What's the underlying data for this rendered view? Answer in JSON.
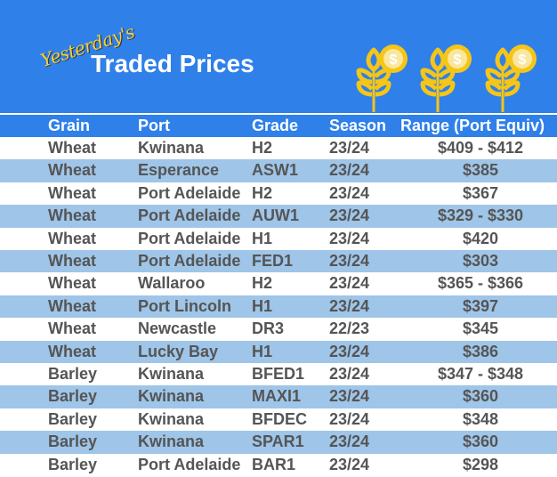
{
  "banner": {
    "script_text": "Yesterday's",
    "title": "Traded Prices",
    "icon": "wheat-coin-icon",
    "bg_color": "#2f80e9",
    "accent_color": "#f5c518"
  },
  "table": {
    "headers": [
      "Grain",
      "Port",
      "Grade",
      "Season",
      "Range (Port Equiv)"
    ],
    "rows": [
      [
        "Wheat",
        "Kwinana",
        "H2",
        "23/24",
        "$409 - $412"
      ],
      [
        "Wheat",
        "Esperance",
        "ASW1",
        "23/24",
        "$385"
      ],
      [
        "Wheat",
        "Port Adelaide",
        "H2",
        "23/24",
        "$367"
      ],
      [
        "Wheat",
        "Port Adelaide",
        "AUW1",
        "23/24",
        "$329 - $330"
      ],
      [
        "Wheat",
        "Port Adelaide",
        "H1",
        "23/24",
        "$420"
      ],
      [
        "Wheat",
        "Port Adelaide",
        "FED1",
        "23/24",
        "$303"
      ],
      [
        "Wheat",
        "Wallaroo",
        "H2",
        "23/24",
        "$365 - $366"
      ],
      [
        "Wheat",
        "Port Lincoln",
        "H1",
        "23/24",
        "$397"
      ],
      [
        "Wheat",
        "Newcastle",
        "DR3",
        "22/23",
        "$345"
      ],
      [
        "Wheat",
        "Lucky Bay",
        "H1",
        "23/24",
        "$386"
      ],
      [
        "Barley",
        "Kwinana",
        "BFED1",
        "23/24",
        "$347 - $348"
      ],
      [
        "Barley",
        "Kwinana",
        "MAXI1",
        "23/24",
        "$360"
      ],
      [
        "Barley",
        "Kwinana",
        "BFDEC",
        "23/24",
        "$348"
      ],
      [
        "Barley",
        "Kwinana",
        "SPAR1",
        "23/24",
        "$360"
      ],
      [
        "Barley",
        "Port Adelaide",
        "BAR1",
        "23/24",
        "$298"
      ]
    ]
  }
}
